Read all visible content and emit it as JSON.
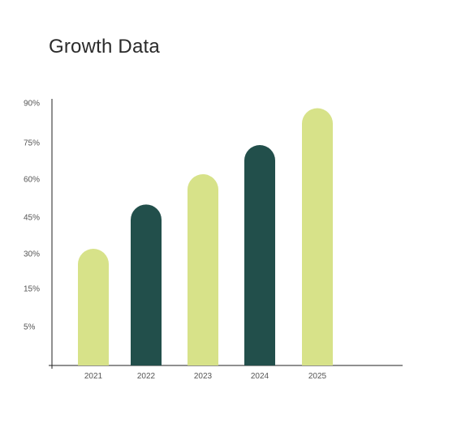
{
  "chart_data": {
    "type": "bar",
    "title": "Growth Data",
    "categories": [
      "2021",
      "2022",
      "2023",
      "2024",
      "2025"
    ],
    "values": [
      32,
      50,
      62,
      74,
      88
    ],
    "y_ticks": [
      "5%",
      "15%",
      "30%",
      "45%",
      "60%",
      "75%",
      "90%"
    ],
    "xlabel": "",
    "ylabel": "",
    "grid": false,
    "legend": "none",
    "bar_style": "rounded-top",
    "colors": [
      "#d7e289",
      "#224f4b",
      "#d7e289",
      "#224f4b",
      "#d7e289"
    ]
  }
}
